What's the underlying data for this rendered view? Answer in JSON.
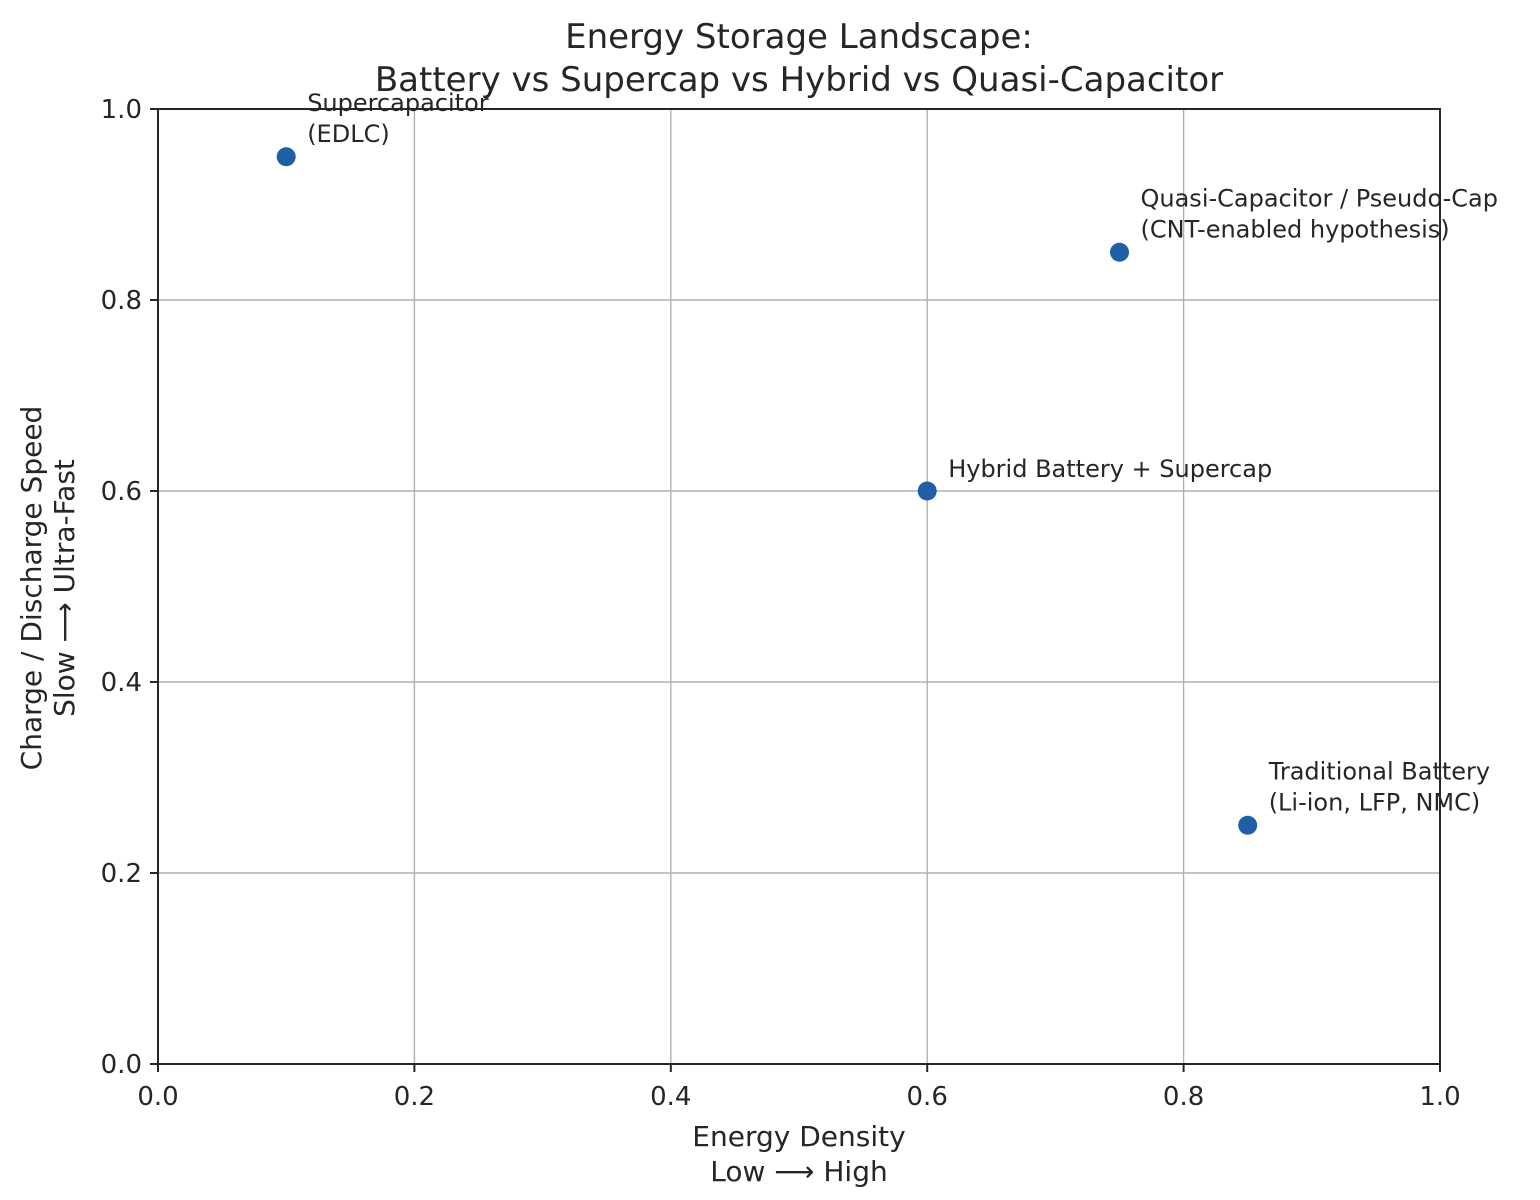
{
  "chart_data": {
    "type": "scatter",
    "title": [
      "Energy Storage Landscape:",
      "Battery vs Supercap vs Hybrid vs Quasi-Capacitor"
    ],
    "xlabel": [
      "Energy Density",
      "Low ⟶ High"
    ],
    "ylabel": [
      "Charge / Discharge Speed",
      "Slow ⟶ Ultra-Fast"
    ],
    "xlim": [
      0,
      1
    ],
    "ylim": [
      0,
      1
    ],
    "xticks": [
      0.0,
      0.2,
      0.4,
      0.6,
      0.8,
      1.0
    ],
    "xtick_labels": [
      "0.0",
      "0.2",
      "0.4",
      "0.6",
      "0.8",
      "1.0"
    ],
    "yticks": [
      0.0,
      0.2,
      0.4,
      0.6,
      0.8,
      1.0
    ],
    "ytick_labels": [
      "0.0",
      "0.2",
      "0.4",
      "0.6",
      "0.8",
      "1.0"
    ],
    "grid": true,
    "marker_color": "#1f5fa6",
    "points": [
      {
        "name": "supercapacitor",
        "x": 0.1,
        "y": 0.95,
        "label": [
          "Supercapacitor",
          "(EDLC)"
        ]
      },
      {
        "name": "traditional-battery",
        "x": 0.85,
        "y": 0.25,
        "label": [
          "Traditional Battery",
          "(Li-ion, LFP, NMC)"
        ]
      },
      {
        "name": "hybrid",
        "x": 0.6,
        "y": 0.6,
        "label": [
          "Hybrid Battery + Supercap"
        ]
      },
      {
        "name": "quasi-capacitor",
        "x": 0.75,
        "y": 0.85,
        "label": [
          "Quasi-Capacitor / Pseudo-Cap",
          "(CNT-enabled hypothesis)"
        ]
      }
    ]
  }
}
